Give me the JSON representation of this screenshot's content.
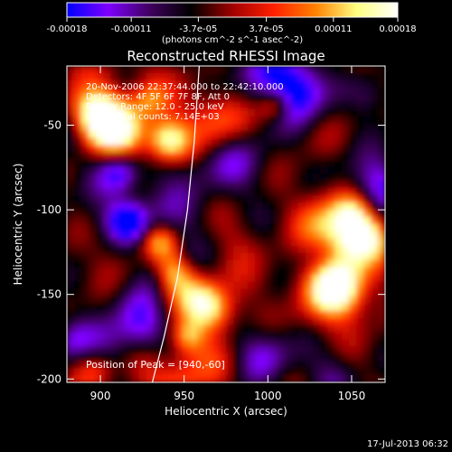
{
  "chart_data": {
    "type": "heatmap",
    "title": "Reconstructed RHESSI Image",
    "xlabel": "Heliocentric X (arcsec)",
    "ylabel": "Heliocentric Y (arcsec)",
    "xlim": [
      880,
      1070
    ],
    "ylim": [
      -202,
      -15
    ],
    "x_ticks": [
      900,
      950,
      1000,
      1050
    ],
    "y_ticks": [
      -50,
      -100,
      -150,
      -200
    ],
    "colorbar": {
      "ticks": [
        "-0.00018",
        "-0.00011",
        "-3.7e-05",
        "3.7e-05",
        "0.00011",
        "0.00018"
      ],
      "tick_values": [
        -0.00018,
        -0.00011,
        -3.7e-05,
        3.7e-05,
        0.00011,
        0.00018
      ],
      "range": [
        -0.00018,
        0.00018
      ],
      "label": "(photons cm^-2 s^-1 asec^-2)",
      "colormap": [
        "#0000ff",
        "#7f00ff",
        "#400060",
        "#000000",
        "#a00000",
        "#ff2000",
        "#ff8000",
        "#ffff80",
        "#ffffff"
      ]
    },
    "annotations": [
      "20-Nov-2006 22:37:44.000 to 22:42:10.000",
      "Detectors: 4F 5F 6F 7F 8F, Att 0",
      "Energy Range: 12.0 - 25.0 keV",
      "Clean      Total counts: 7.14E+03"
    ],
    "peak_label": "Position of Peak = [940,-60]",
    "peak": [
      940,
      -60
    ],
    "limb_points": [
      [
        959,
        -15
      ],
      [
        956,
        -60
      ],
      [
        952,
        -100
      ],
      [
        946,
        -140
      ],
      [
        938,
        -175
      ],
      [
        931,
        -202
      ]
    ]
  },
  "footer": {
    "timestamp": "17-Jul-2013 06:32"
  }
}
